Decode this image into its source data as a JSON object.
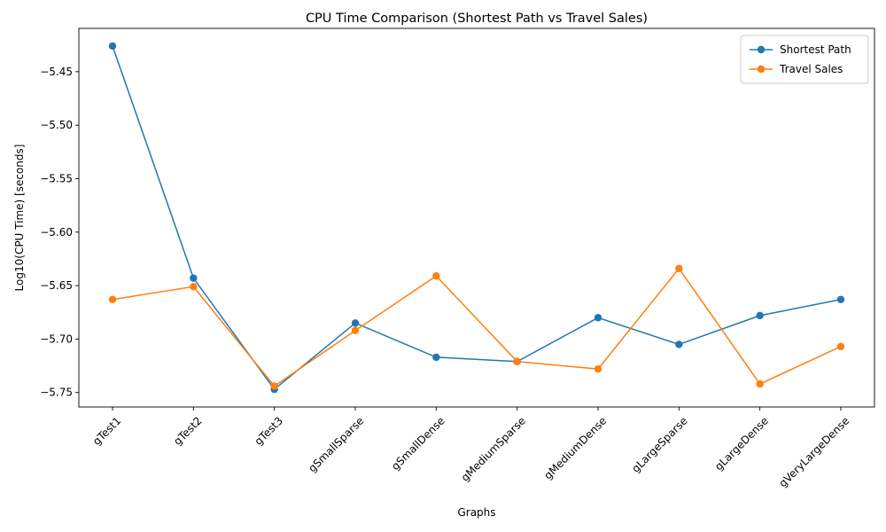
{
  "chart_data": {
    "type": "line",
    "title": "CPU Time Comparison (Shortest Path vs Travel Sales)",
    "xlabel": "Graphs",
    "ylabel": "Log10(CPU Time) [seconds]",
    "categories": [
      "gTest1",
      "gTest2",
      "gTest3",
      "gSmallSparse",
      "gSmallDense",
      "gMediumSparse",
      "gMediumDense",
      "gLargeSparse",
      "gLargeDense",
      "gVeryLargeDense"
    ],
    "series": [
      {
        "name": "Shortest Path",
        "color": "#1f77b4",
        "values": [
          -5.426,
          -5.643,
          -5.747,
          -5.685,
          -5.717,
          -5.721,
          -5.68,
          -5.705,
          -5.678,
          -5.663
        ]
      },
      {
        "name": "Travel Sales",
        "color": "#ff7f0e",
        "values": [
          -5.663,
          -5.651,
          -5.744,
          -5.692,
          -5.641,
          -5.721,
          -5.728,
          -5.634,
          -5.742,
          -5.707
        ]
      }
    ],
    "ylim": [
      -5.7635,
      -5.4095
    ],
    "yticks": [
      -5.45,
      -5.5,
      -5.55,
      -5.6,
      -5.65,
      -5.7,
      -5.75
    ],
    "ytick_labels": [
      "−5.45",
      "−5.50",
      "−5.55",
      "−5.60",
      "−5.65",
      "−5.70",
      "−5.75"
    ],
    "grid": false,
    "legend_position": "top-right",
    "marker": "circle"
  }
}
